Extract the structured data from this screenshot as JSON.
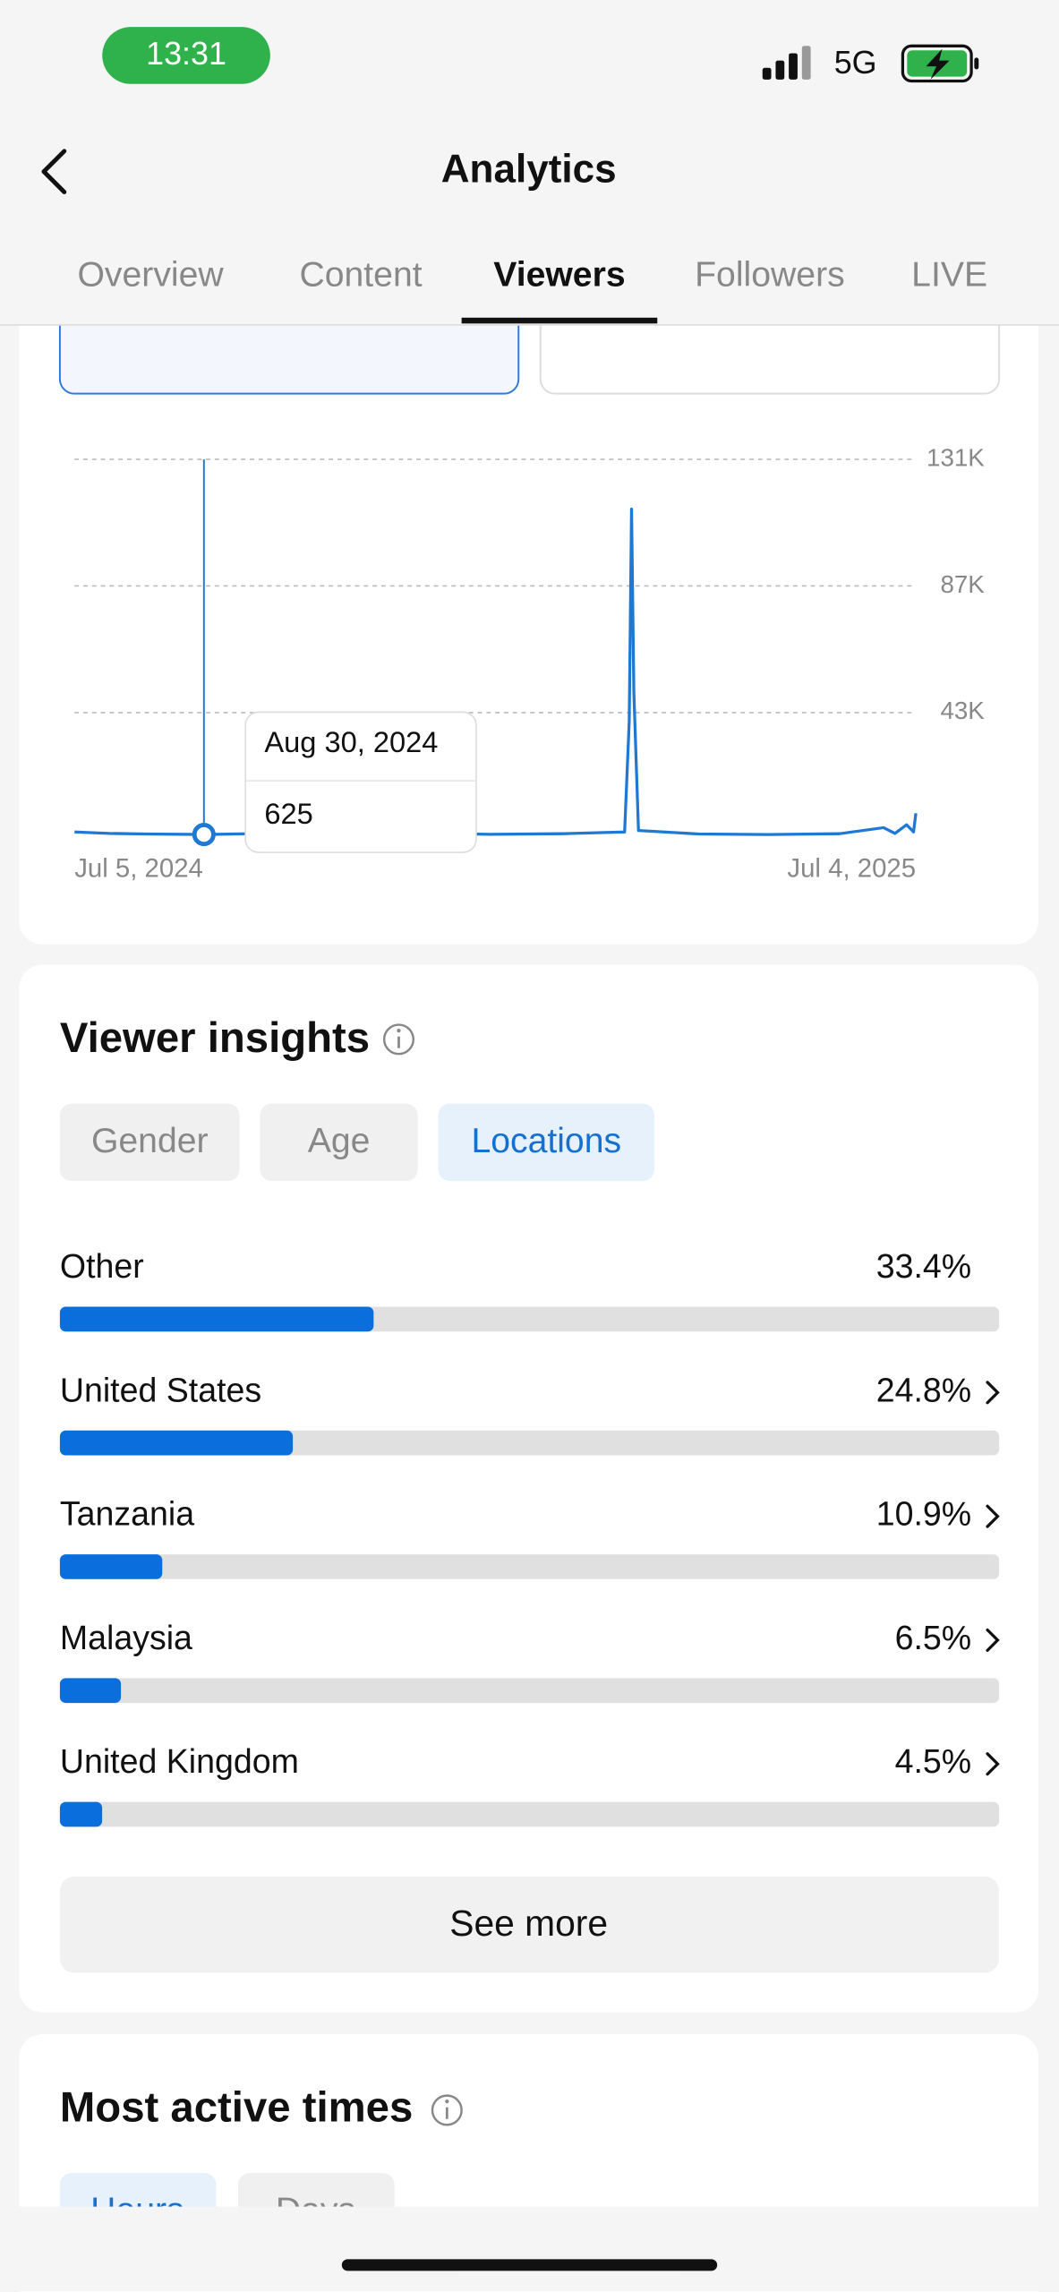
{
  "status": {
    "time": "13:31",
    "network": "5G"
  },
  "header": {
    "title": "Analytics"
  },
  "tabs": [
    "Overview",
    "Content",
    "Viewers",
    "Followers",
    "LIVE"
  ],
  "active_tab": 2,
  "chart_data": [
    {
      "type": "line",
      "color": "#1f78d1",
      "x": [
        "2024-07-05",
        "2024-07-20",
        "2024-08-05",
        "2024-08-30",
        "2024-09-20",
        "2024-10-15",
        "2024-11-10",
        "2024-12-05",
        "2025-01-01",
        "2025-02-01",
        "2025-02-28",
        "2025-03-02",
        "2025-03-03",
        "2025-03-04",
        "2025-03-06",
        "2025-04-01",
        "2025-05-01",
        "2025-06-01",
        "2025-06-20",
        "2025-06-25",
        "2025-06-30",
        "2025-07-03",
        "2025-07-04"
      ],
      "values": [
        1500,
        1000,
        800,
        625,
        900,
        1200,
        800,
        1000,
        700,
        900,
        1500,
        40000,
        113700,
        50000,
        2000,
        800,
        600,
        900,
        3000,
        1000,
        4000,
        1500,
        8000
      ],
      "xlim": [
        "2024-07-05",
        "2025-07-04"
      ],
      "xticks": [
        {
          "value": "2024-07-05",
          "label": "Jul 5, 2024"
        },
        {
          "value": "2025-07-04",
          "label": "Jul 4, 2025"
        }
      ],
      "ylim": [
        0,
        131000
      ],
      "yticks": [
        {
          "value": 43000,
          "label": "43K"
        },
        {
          "value": 87000,
          "label": "87K"
        },
        {
          "value": 131000,
          "label": "131K"
        }
      ],
      "grid": true,
      "tooltip": {
        "index": 3,
        "date": "Aug 30, 2024",
        "value": 625
      }
    },
    {
      "type": "hbar",
      "title": "Viewer insights",
      "color": "#0a6fdc",
      "filters": [
        "Gender",
        "Age",
        "Locations"
      ],
      "active_filter": 2,
      "categories": [
        "Other",
        "United States",
        "Tanzania",
        "Malaysia",
        "United Kingdom"
      ],
      "values": [
        33.4,
        24.8,
        10.9,
        6.5,
        4.5
      ],
      "value_labels": [
        "33.4%",
        "24.8%",
        "10.9%",
        "6.5%",
        "4.5%"
      ],
      "xlim": [
        0,
        100
      ]
    }
  ],
  "see_more": "See more",
  "most_active": {
    "title": "Most active times",
    "tabs": [
      "Hours",
      "Days"
    ]
  }
}
